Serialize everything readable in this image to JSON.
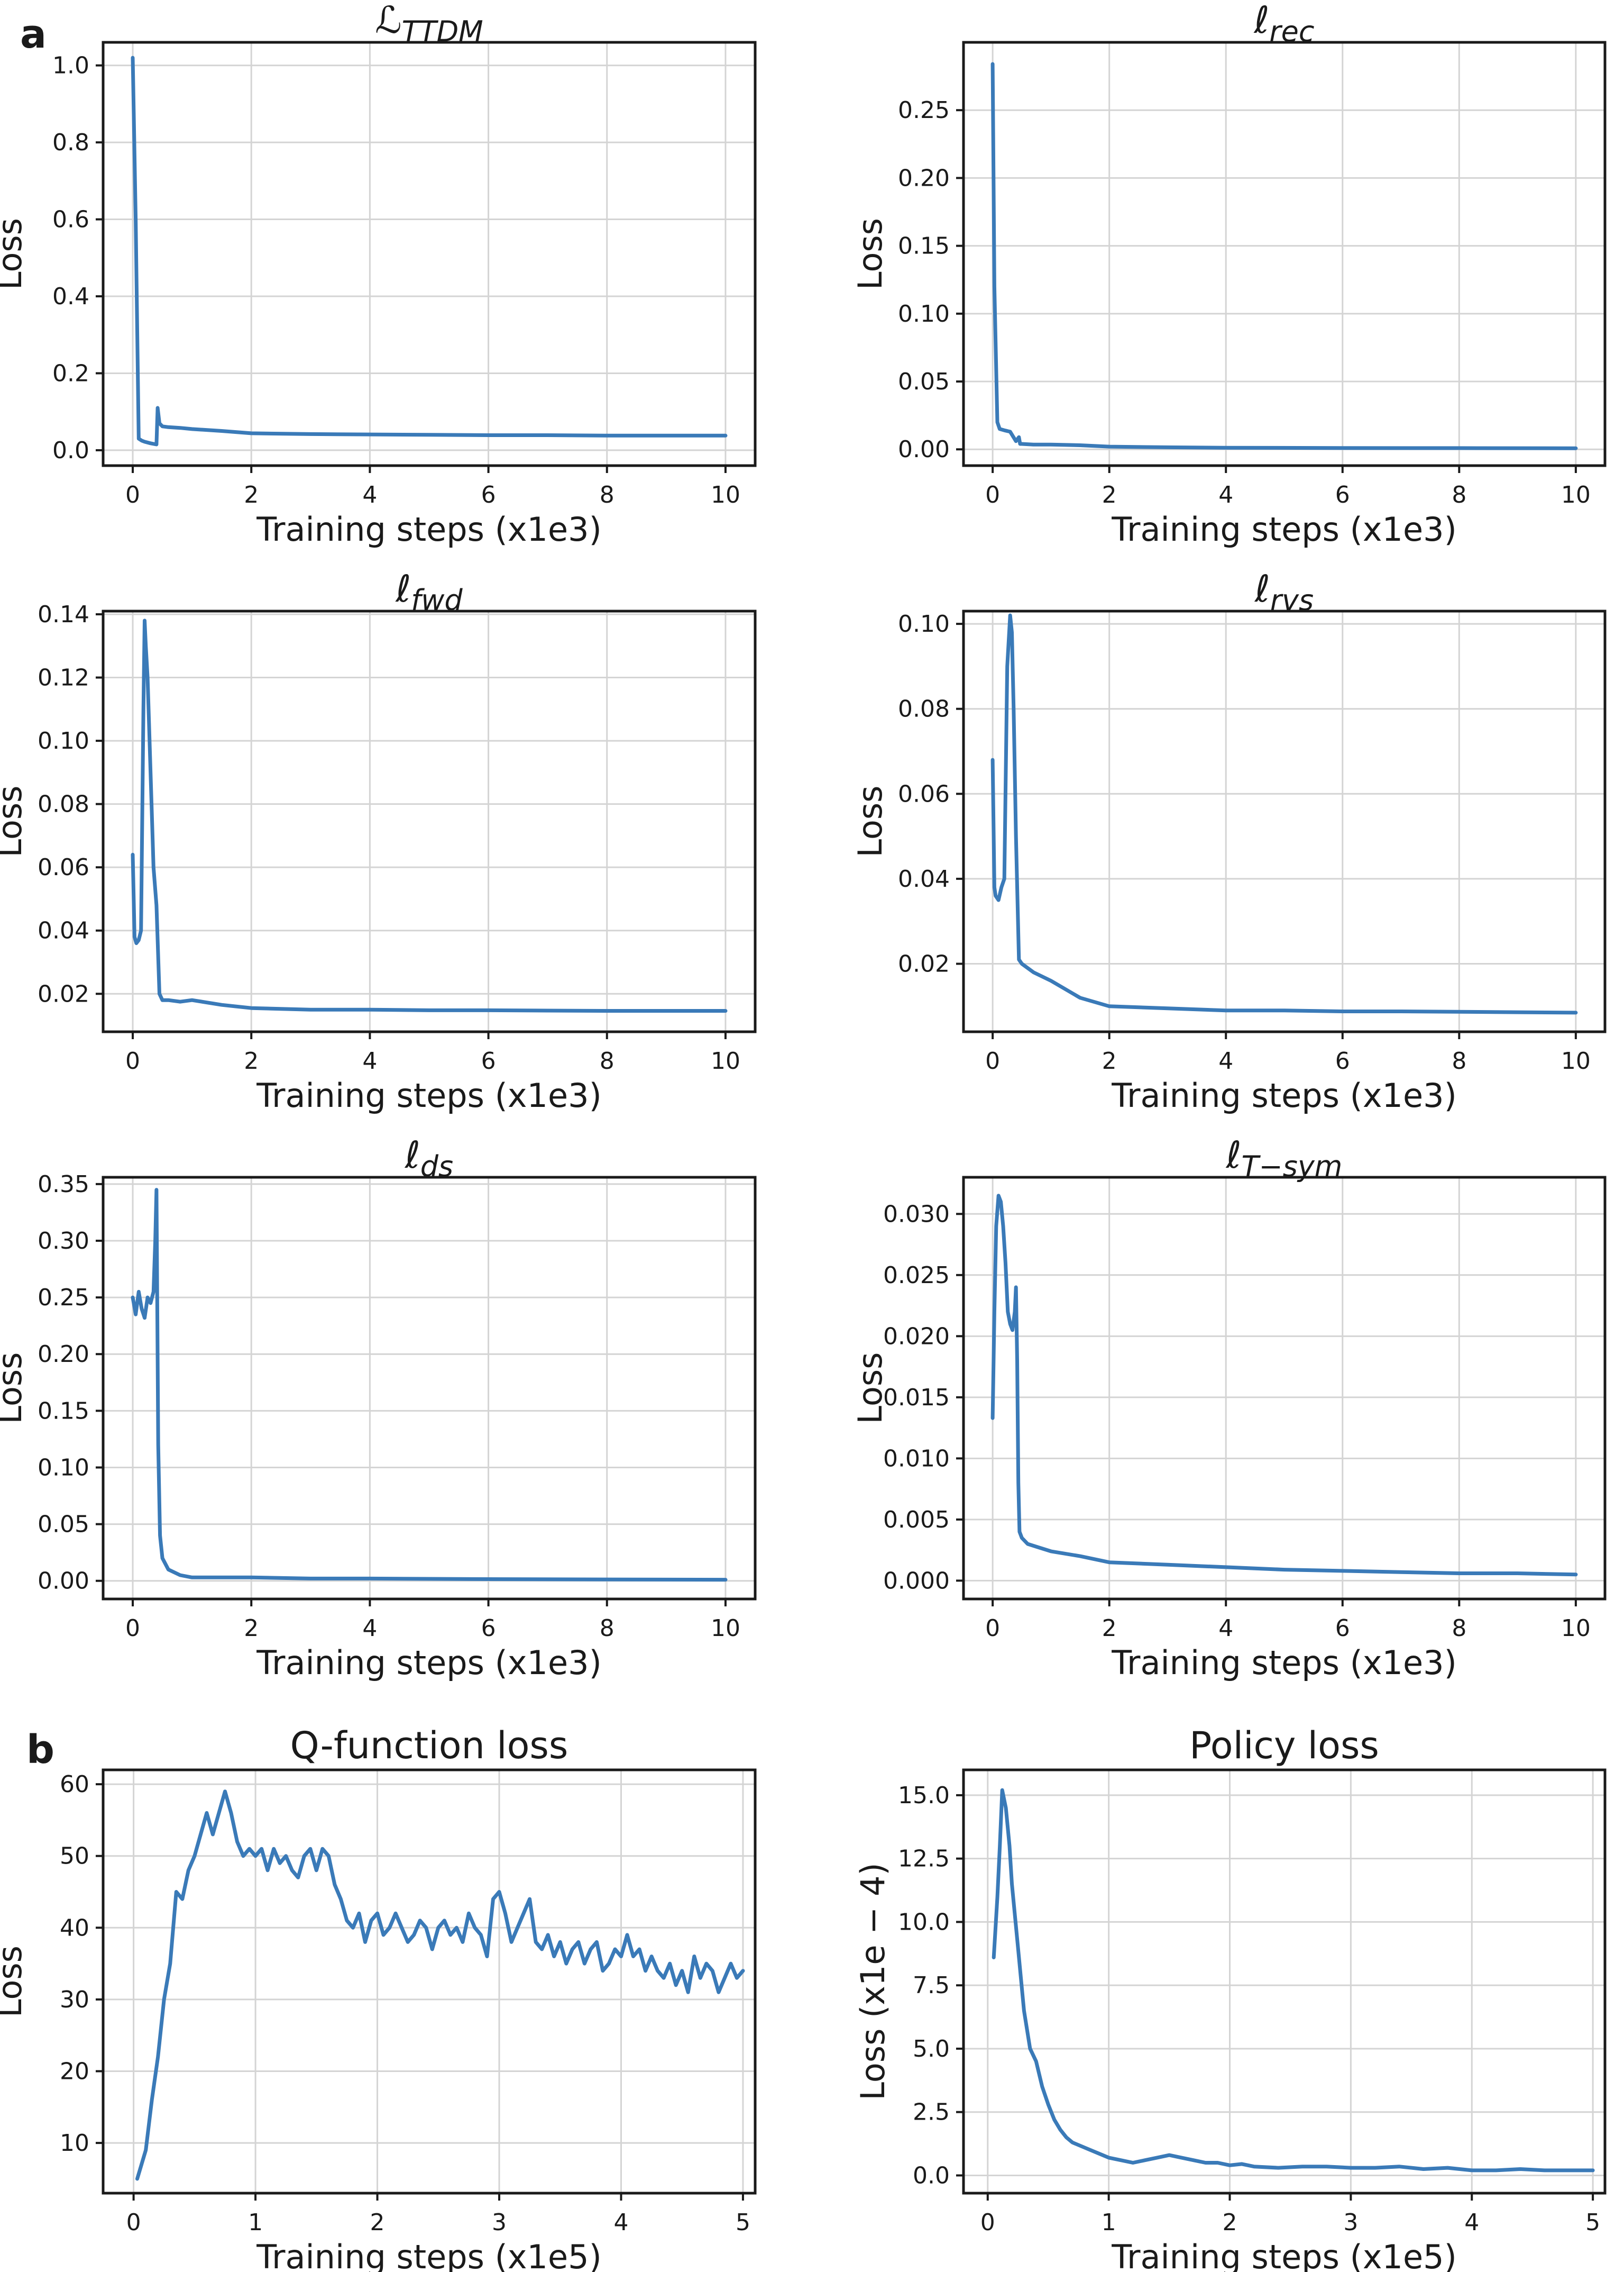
{
  "figure": {
    "panel_labels": {
      "a": "a",
      "b": "b"
    }
  },
  "chart_data": [
    {
      "type": "line",
      "title": "ℒ_TTDM",
      "title_main": "ℒ",
      "title_sub": "TTDM",
      "title_style": "math",
      "xlabel": "Training steps (x1e3)",
      "ylabel": "Loss",
      "xlim": [
        -0.5,
        10.5
      ],
      "ylim": [
        -0.04,
        1.06
      ],
      "xticks": [
        0,
        2,
        4,
        6,
        8,
        10
      ],
      "xtick_labels": [
        "0",
        "2",
        "4",
        "6",
        "8",
        "10"
      ],
      "yticks": [
        0,
        0.2,
        0.4,
        0.6,
        0.8,
        1.0
      ],
      "ytick_labels": [
        "0.0",
        "0.2",
        "0.4",
        "0.6",
        "0.8",
        "1.0"
      ],
      "grid": true,
      "series": [
        {
          "name": "loss",
          "color": "#3a7ab8",
          "x": [
            0,
            0.05,
            0.1,
            0.15,
            0.2,
            0.3,
            0.4,
            0.42,
            0.45,
            0.5,
            0.6,
            0.8,
            1.0,
            1.5,
            2.0,
            3.0,
            4.0,
            5.0,
            6.0,
            7.0,
            8.0,
            9.0,
            10.0
          ],
          "y": [
            1.02,
            0.6,
            0.03,
            0.025,
            0.022,
            0.018,
            0.015,
            0.11,
            0.07,
            0.062,
            0.06,
            0.058,
            0.055,
            0.05,
            0.044,
            0.042,
            0.041,
            0.04,
            0.039,
            0.039,
            0.038,
            0.038,
            0.038
          ]
        }
      ]
    },
    {
      "type": "line",
      "title": "ℓ_rec",
      "title_main": "ℓ",
      "title_sub": "rec",
      "title_style": "math",
      "xlabel": "Training steps (x1e3)",
      "ylabel": "Loss",
      "xlim": [
        -0.5,
        10.5
      ],
      "ylim": [
        -0.012,
        0.3
      ],
      "xticks": [
        0,
        2,
        4,
        6,
        8,
        10
      ],
      "xtick_labels": [
        "0",
        "2",
        "4",
        "6",
        "8",
        "10"
      ],
      "yticks": [
        0,
        0.05,
        0.1,
        0.15,
        0.2,
        0.25
      ],
      "ytick_labels": [
        "0.00",
        "0.05",
        "0.10",
        "0.15",
        "0.20",
        "0.25"
      ],
      "grid": true,
      "series": [
        {
          "name": "loss",
          "color": "#3a7ab8",
          "x": [
            0,
            0.03,
            0.08,
            0.12,
            0.2,
            0.3,
            0.4,
            0.45,
            0.47,
            0.5,
            0.7,
            1.0,
            1.5,
            2.0,
            3.0,
            4.0,
            6.0,
            8.0,
            10.0
          ],
          "y": [
            0.284,
            0.12,
            0.02,
            0.015,
            0.014,
            0.013,
            0.006,
            0.009,
            0.004,
            0.004,
            0.0035,
            0.0035,
            0.003,
            0.002,
            0.0015,
            0.0012,
            0.001,
            0.0009,
            0.0008
          ]
        }
      ]
    },
    {
      "type": "line",
      "title": "ℓ_fwd",
      "title_main": "ℓ",
      "title_sub": "fwd",
      "title_style": "math",
      "xlabel": "Training steps (x1e3)",
      "ylabel": "Loss",
      "xlim": [
        -0.5,
        10.5
      ],
      "ylim": [
        0.008,
        0.141
      ],
      "xticks": [
        0,
        2,
        4,
        6,
        8,
        10
      ],
      "xtick_labels": [
        "0",
        "2",
        "4",
        "6",
        "8",
        "10"
      ],
      "yticks": [
        0.02,
        0.04,
        0.06,
        0.08,
        0.1,
        0.12,
        0.14
      ],
      "ytick_labels": [
        "0.02",
        "0.04",
        "0.06",
        "0.08",
        "0.10",
        "0.12",
        "0.14"
      ],
      "grid": true,
      "series": [
        {
          "name": "loss",
          "color": "#3a7ab8",
          "x": [
            0,
            0.03,
            0.06,
            0.1,
            0.14,
            0.18,
            0.2,
            0.22,
            0.25,
            0.3,
            0.35,
            0.4,
            0.45,
            0.5,
            0.6,
            0.8,
            1.0,
            1.5,
            2.0,
            3.0,
            4.0,
            5.0,
            6.0,
            7.0,
            8.0,
            9.0,
            10.0
          ],
          "y": [
            0.064,
            0.038,
            0.036,
            0.037,
            0.04,
            0.11,
            0.138,
            0.13,
            0.12,
            0.09,
            0.06,
            0.048,
            0.02,
            0.018,
            0.018,
            0.0175,
            0.018,
            0.0165,
            0.0155,
            0.015,
            0.015,
            0.0148,
            0.0148,
            0.0147,
            0.0146,
            0.0146,
            0.0146
          ]
        }
      ]
    },
    {
      "type": "line",
      "title": "ℓ_rvs",
      "title_main": "ℓ",
      "title_sub": "rvs",
      "title_style": "math",
      "xlabel": "Training steps (x1e3)",
      "ylabel": "Loss",
      "xlim": [
        -0.5,
        10.5
      ],
      "ylim": [
        0.004,
        0.103
      ],
      "xticks": [
        0,
        2,
        4,
        6,
        8,
        10
      ],
      "xtick_labels": [
        "0",
        "2",
        "4",
        "6",
        "8",
        "10"
      ],
      "yticks": [
        0.02,
        0.04,
        0.06,
        0.08,
        0.1
      ],
      "ytick_labels": [
        "0.02",
        "0.04",
        "0.06",
        "0.08",
        "0.10"
      ],
      "grid": true,
      "series": [
        {
          "name": "loss",
          "color": "#3a7ab8",
          "x": [
            0,
            0.03,
            0.05,
            0.1,
            0.15,
            0.2,
            0.25,
            0.3,
            0.33,
            0.36,
            0.4,
            0.45,
            0.5,
            0.7,
            1.0,
            1.5,
            2.0,
            3.0,
            4.0,
            5.0,
            6.0,
            7.0,
            8.0,
            9.0,
            10.0
          ],
          "y": [
            0.068,
            0.038,
            0.036,
            0.035,
            0.038,
            0.04,
            0.09,
            0.102,
            0.098,
            0.08,
            0.05,
            0.021,
            0.02,
            0.018,
            0.016,
            0.012,
            0.01,
            0.0095,
            0.009,
            0.009,
            0.0088,
            0.0088,
            0.0087,
            0.0086,
            0.0085
          ]
        }
      ]
    },
    {
      "type": "line",
      "title": "ℓ_ds",
      "title_main": "ℓ",
      "title_sub": "ds",
      "title_style": "math",
      "xlabel": "Training steps (x1e3)",
      "ylabel": "Loss",
      "xlim": [
        -0.5,
        10.5
      ],
      "ylim": [
        -0.016,
        0.356
      ],
      "xticks": [
        0,
        2,
        4,
        6,
        8,
        10
      ],
      "xtick_labels": [
        "0",
        "2",
        "4",
        "6",
        "8",
        "10"
      ],
      "yticks": [
        0,
        0.05,
        0.1,
        0.15,
        0.2,
        0.25,
        0.3,
        0.35
      ],
      "ytick_labels": [
        "0.00",
        "0.05",
        "0.10",
        "0.15",
        "0.20",
        "0.25",
        "0.30",
        "0.35"
      ],
      "grid": true,
      "series": [
        {
          "name": "loss",
          "color": "#3a7ab8",
          "x": [
            0,
            0.05,
            0.1,
            0.15,
            0.2,
            0.25,
            0.3,
            0.35,
            0.38,
            0.4,
            0.43,
            0.46,
            0.5,
            0.6,
            0.8,
            1.0,
            1.5,
            2.0,
            3.0,
            4.0,
            6.0,
            8.0,
            10.0
          ],
          "y": [
            0.25,
            0.235,
            0.255,
            0.24,
            0.232,
            0.25,
            0.245,
            0.255,
            0.3,
            0.345,
            0.12,
            0.04,
            0.02,
            0.01,
            0.005,
            0.003,
            0.003,
            0.003,
            0.002,
            0.002,
            0.0015,
            0.0012,
            0.001
          ]
        }
      ]
    },
    {
      "type": "line",
      "title": "ℓ_T-sym",
      "title_main": "ℓ",
      "title_sub": "T−sym",
      "title_style": "math",
      "xlabel": "Training steps (x1e3)",
      "ylabel": "Loss",
      "xlim": [
        -0.5,
        10.5
      ],
      "ylim": [
        -0.0015,
        0.033
      ],
      "xticks": [
        0,
        2,
        4,
        6,
        8,
        10
      ],
      "xtick_labels": [
        "0",
        "2",
        "4",
        "6",
        "8",
        "10"
      ],
      "yticks": [
        0,
        0.005,
        0.01,
        0.015,
        0.02,
        0.025,
        0.03
      ],
      "ytick_labels": [
        "0.000",
        "0.005",
        "0.010",
        "0.015",
        "0.020",
        "0.025",
        "0.030"
      ],
      "grid": true,
      "series": [
        {
          "name": "loss",
          "color": "#3a7ab8",
          "x": [
            0,
            0.03,
            0.06,
            0.1,
            0.14,
            0.18,
            0.22,
            0.26,
            0.3,
            0.34,
            0.38,
            0.4,
            0.42,
            0.44,
            0.46,
            0.5,
            0.6,
            0.8,
            1.0,
            1.5,
            2.0,
            3.0,
            4.0,
            5.0,
            6.0,
            7.0,
            8.0,
            9.0,
            10.0
          ],
          "y": [
            0.0133,
            0.022,
            0.029,
            0.0315,
            0.031,
            0.029,
            0.026,
            0.022,
            0.021,
            0.0205,
            0.022,
            0.024,
            0.018,
            0.008,
            0.004,
            0.0035,
            0.003,
            0.0027,
            0.0024,
            0.002,
            0.0015,
            0.0013,
            0.0011,
            0.0009,
            0.0008,
            0.0007,
            0.0006,
            0.0006,
            0.0005
          ]
        }
      ]
    },
    {
      "type": "line",
      "title": "Q-function loss",
      "title_style": "plain",
      "xlabel": "Training steps (x1e5)",
      "ylabel": "Loss",
      "xlim": [
        -0.25,
        5.1
      ],
      "ylim": [
        3,
        62
      ],
      "xticks": [
        0,
        1,
        2,
        3,
        4,
        5
      ],
      "xtick_labels": [
        "0",
        "1",
        "2",
        "3",
        "4",
        "5"
      ],
      "yticks": [
        10,
        20,
        30,
        40,
        50,
        60
      ],
      "ytick_labels": [
        "10",
        "20",
        "30",
        "40",
        "50",
        "60"
      ],
      "grid": true,
      "series": [
        {
          "name": "loss",
          "color": "#3a7ab8",
          "x": [
            0.03,
            0.1,
            0.15,
            0.2,
            0.25,
            0.3,
            0.35,
            0.4,
            0.45,
            0.5,
            0.55,
            0.6,
            0.65,
            0.7,
            0.75,
            0.8,
            0.85,
            0.9,
            0.95,
            1.0,
            1.05,
            1.1,
            1.15,
            1.2,
            1.25,
            1.3,
            1.35,
            1.4,
            1.45,
            1.5,
            1.55,
            1.6,
            1.65,
            1.7,
            1.75,
            1.8,
            1.85,
            1.9,
            1.95,
            2.0,
            2.05,
            2.1,
            2.15,
            2.2,
            2.25,
            2.3,
            2.35,
            2.4,
            2.45,
            2.5,
            2.55,
            2.6,
            2.65,
            2.7,
            2.75,
            2.8,
            2.85,
            2.9,
            2.95,
            3.0,
            3.05,
            3.1,
            3.15,
            3.2,
            3.25,
            3.3,
            3.35,
            3.4,
            3.45,
            3.5,
            3.55,
            3.6,
            3.65,
            3.7,
            3.75,
            3.8,
            3.85,
            3.9,
            3.95,
            4.0,
            4.05,
            4.1,
            4.15,
            4.2,
            4.25,
            4.3,
            4.35,
            4.4,
            4.45,
            4.5,
            4.55,
            4.6,
            4.65,
            4.7,
            4.75,
            4.8,
            4.85,
            4.9,
            4.95,
            5.0
          ],
          "y": [
            5,
            9,
            16,
            22,
            30,
            35,
            45,
            44,
            48,
            50,
            53,
            56,
            53,
            56,
            59,
            56,
            52,
            50,
            51,
            50,
            51,
            48,
            51,
            49,
            50,
            48,
            47,
            50,
            51,
            48,
            51,
            50,
            46,
            44,
            41,
            40,
            42,
            38,
            41,
            42,
            39,
            40,
            42,
            40,
            38,
            39,
            41,
            40,
            37,
            40,
            41,
            39,
            40,
            38,
            42,
            40,
            39,
            36,
            44,
            45,
            42,
            38,
            40,
            42,
            44,
            38,
            37,
            39,
            36,
            38,
            35,
            37,
            38,
            35,
            37,
            38,
            34,
            35,
            37,
            36,
            39,
            36,
            37,
            34,
            36,
            34,
            33,
            35,
            32,
            34,
            31,
            36,
            33,
            35,
            34,
            31,
            33,
            35,
            33,
            34
          ]
        }
      ]
    },
    {
      "type": "line",
      "title": "Policy loss",
      "title_style": "plain",
      "xlabel": "Training steps (x1e5)",
      "ylabel": "Loss (x1e − 4)",
      "xlim": [
        -0.2,
        5.1
      ],
      "ylim": [
        -0.7,
        16
      ],
      "xticks": [
        0,
        1,
        2,
        3,
        4,
        5
      ],
      "xtick_labels": [
        "0",
        "1",
        "2",
        "3",
        "4",
        "5"
      ],
      "yticks": [
        0,
        2.5,
        5,
        7.5,
        10,
        12.5,
        15
      ],
      "ytick_labels": [
        "0.0",
        "2.5",
        "5.0",
        "7.5",
        "10.0",
        "12.5",
        "15.0"
      ],
      "grid": true,
      "series": [
        {
          "name": "loss",
          "color": "#3a7ab8",
          "x": [
            0.05,
            0.08,
            0.1,
            0.12,
            0.15,
            0.18,
            0.2,
            0.25,
            0.3,
            0.35,
            0.4,
            0.45,
            0.5,
            0.55,
            0.6,
            0.65,
            0.7,
            0.8,
            0.9,
            1.0,
            1.1,
            1.2,
            1.3,
            1.4,
            1.5,
            1.6,
            1.7,
            1.8,
            1.9,
            2.0,
            2.1,
            2.2,
            2.4,
            2.6,
            2.8,
            3.0,
            3.2,
            3.4,
            3.6,
            3.8,
            4.0,
            4.2,
            4.4,
            4.6,
            4.8,
            5.0
          ],
          "y": [
            8.6,
            11,
            13,
            15.2,
            14.5,
            13,
            11.5,
            9,
            6.5,
            5,
            4.5,
            3.5,
            2.8,
            2.2,
            1.8,
            1.5,
            1.3,
            1.1,
            0.9,
            0.7,
            0.6,
            0.5,
            0.6,
            0.7,
            0.8,
            0.7,
            0.6,
            0.5,
            0.5,
            0.4,
            0.45,
            0.35,
            0.3,
            0.35,
            0.35,
            0.3,
            0.3,
            0.35,
            0.25,
            0.3,
            0.2,
            0.2,
            0.25,
            0.2,
            0.2,
            0.2
          ]
        }
      ]
    }
  ]
}
